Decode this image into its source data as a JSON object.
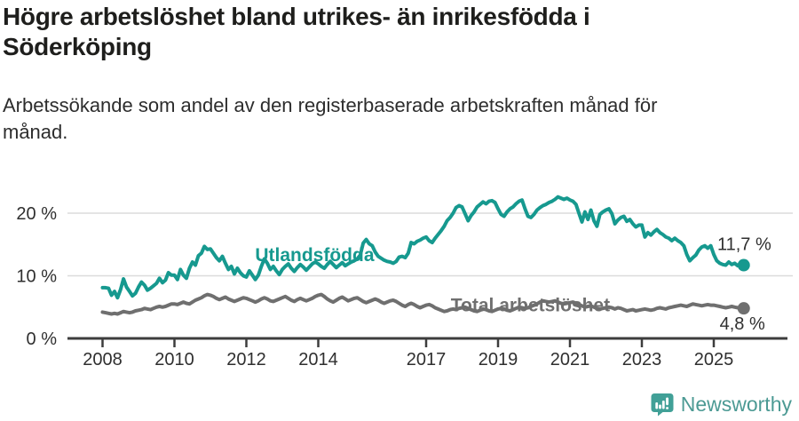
{
  "chart_data": {
    "type": "line",
    "title": "Högre arbetslöshet bland utrikes- än inrikesfödda i\nSöderköping",
    "subtitle": "Arbetssökande som andel av den registerbaserade arbetskraften månad för\nmånad.",
    "x_start_year": 2008,
    "x_step_months": 1,
    "x_ticks": [
      "2008",
      "2010",
      "2012",
      "2014",
      "2017",
      "2019",
      "2021",
      "2023",
      "2025"
    ],
    "y_ticks": [
      {
        "value": 0,
        "label": "0 %"
      },
      {
        "value": 10,
        "label": "10 %"
      },
      {
        "value": 20,
        "label": "20 %"
      }
    ],
    "ylim": [
      0,
      24
    ],
    "grid": "horizontal-light",
    "legend_position": "inline-labels",
    "series": [
      {
        "name": "Utlandsfödda",
        "color": "#16998f",
        "end_label": "11,7 %",
        "last_value": 11.7,
        "label_anchor": {
          "year": 2013.9,
          "value": 13.3
        },
        "values": [
          8.1,
          8.1,
          8.0,
          6.9,
          7.5,
          6.5,
          7.8,
          9.5,
          8.2,
          7.5,
          6.8,
          7.2,
          8.2,
          9.0,
          8.5,
          7.7,
          8.0,
          8.4,
          8.8,
          9.6,
          8.9,
          9.3,
          10.5,
          10.1,
          10.1,
          9.4,
          11.0,
          10.1,
          9.6,
          11.2,
          12.2,
          11.7,
          13.2,
          13.6,
          14.7,
          14.2,
          14.3,
          13.6,
          12.9,
          12.4,
          13.1,
          12.0,
          11.0,
          11.5,
          10.3,
          11.2,
          10.5,
          10.0,
          9.8,
          10.8,
          10.1,
          9.4,
          10.1,
          11.5,
          12.7,
          12.0,
          11.0,
          11.5,
          10.8,
          10.2,
          11.0,
          11.5,
          11.9,
          11.2,
          10.7,
          11.3,
          11.8,
          11.4,
          10.9,
          11.4,
          11.9,
          12.2,
          11.9,
          11.5,
          11.2,
          11.8,
          12.3,
          11.8,
          11.3,
          11.7,
          12.1,
          11.6,
          11.9,
          12.2,
          12.4,
          12.7,
          13.3,
          15.2,
          15.8,
          15.1,
          14.8,
          13.8,
          13.1,
          12.8,
          12.5,
          12.3,
          12.2,
          12.0,
          12.3,
          13.0,
          13.1,
          12.9,
          13.6,
          15.3,
          15.1,
          15.5,
          15.7,
          16.0,
          16.2,
          15.6,
          15.3,
          16.0,
          16.6,
          17.2,
          17.9,
          18.8,
          19.3,
          20.0,
          20.9,
          21.2,
          21.0,
          19.9,
          18.8,
          19.6,
          20.2,
          21.0,
          21.4,
          21.8,
          21.5,
          21.9,
          22.0,
          21.7,
          20.7,
          19.8,
          19.5,
          20.2,
          20.7,
          21.0,
          21.5,
          21.9,
          22.1,
          20.7,
          19.5,
          19.3,
          19.8,
          20.5,
          20.9,
          21.2,
          21.4,
          21.7,
          21.9,
          22.2,
          22.6,
          22.4,
          22.2,
          22.4,
          22.1,
          21.9,
          21.4,
          20.0,
          18.6,
          20.2,
          19.0,
          20.5,
          18.8,
          17.9,
          19.8,
          20.2,
          20.5,
          20.7,
          19.9,
          18.3,
          18.9,
          19.3,
          19.5,
          18.7,
          19.0,
          18.3,
          17.8,
          18.1,
          18.1,
          16.2,
          16.9,
          16.5,
          17.0,
          17.4,
          16.9,
          16.6,
          16.2,
          16.0,
          15.6,
          16.0,
          15.6,
          15.3,
          14.8,
          13.4,
          12.4,
          12.9,
          13.3,
          14.1,
          14.6,
          14.8,
          14.4,
          14.8,
          13.4,
          12.4,
          12.0,
          11.8,
          11.7,
          12.2,
          11.8,
          12.0,
          11.6,
          11.8,
          11.7
        ]
      },
      {
        "name": "Total arbetslöshet",
        "color": "#6f6f6f",
        "end_label": "4,8 %",
        "last_value": 4.8,
        "label_anchor": {
          "year": 2019.9,
          "value": 5.35
        },
        "values": [
          4.2,
          4.1,
          4.0,
          3.9,
          4.0,
          3.9,
          4.1,
          4.3,
          4.2,
          4.1,
          4.2,
          4.4,
          4.5,
          4.6,
          4.8,
          4.7,
          4.6,
          4.8,
          5.0,
          5.1,
          5.0,
          5.1,
          5.3,
          5.5,
          5.5,
          5.4,
          5.6,
          5.8,
          5.6,
          5.5,
          5.8,
          6.1,
          6.3,
          6.5,
          6.8,
          7.0,
          6.9,
          6.7,
          6.4,
          6.2,
          6.4,
          6.6,
          6.3,
          6.1,
          5.9,
          6.1,
          6.3,
          6.5,
          6.4,
          6.2,
          6.0,
          5.8,
          6.0,
          6.3,
          6.5,
          6.3,
          6.0,
          5.9,
          6.1,
          6.3,
          6.5,
          6.7,
          6.4,
          6.1,
          5.9,
          6.2,
          6.4,
          6.2,
          6.0,
          6.2,
          6.4,
          6.7,
          6.9,
          7.0,
          6.7,
          6.3,
          6.0,
          5.8,
          6.1,
          6.4,
          6.6,
          6.3,
          6.0,
          6.2,
          6.4,
          6.5,
          6.2,
          5.9,
          5.7,
          5.9,
          6.1,
          6.3,
          6.1,
          5.8,
          5.6,
          5.8,
          6.0,
          6.1,
          5.9,
          5.6,
          5.3,
          5.1,
          5.4,
          5.6,
          5.4,
          5.1,
          4.9,
          5.1,
          5.3,
          5.4,
          5.2,
          4.9,
          4.7,
          4.5,
          4.3,
          4.4,
          4.6,
          4.7,
          4.6,
          4.8,
          4.9,
          5.0,
          4.8,
          4.6,
          4.4,
          4.3,
          4.5,
          4.7,
          4.6,
          4.4,
          4.3,
          4.5,
          4.7,
          4.8,
          4.7,
          4.5,
          4.4,
          4.6,
          4.8,
          5.0,
          4.9,
          4.8,
          4.9,
          5.1,
          5.3,
          5.5,
          5.8,
          6.0,
          5.9,
          5.8,
          5.9,
          6.0,
          5.8,
          5.6,
          5.5,
          5.6,
          5.7,
          5.8,
          5.6,
          5.4,
          5.2,
          5.0,
          5.1,
          5.2,
          5.0,
          4.8,
          4.7,
          4.8,
          4.9,
          5.0,
          4.9,
          4.7,
          4.9,
          4.8,
          4.6,
          4.4,
          4.5,
          4.6,
          4.4,
          4.5,
          4.6,
          4.7,
          4.6,
          4.5,
          4.6,
          4.8,
          4.9,
          4.8,
          4.7,
          4.9,
          5.0,
          5.1,
          5.2,
          5.3,
          5.2,
          5.1,
          5.3,
          5.5,
          5.4,
          5.3,
          5.2,
          5.3,
          5.4,
          5.3,
          5.3,
          5.2,
          5.1,
          5.0,
          4.9,
          5.0,
          5.1,
          5.0,
          4.9,
          4.9,
          4.8
        ]
      }
    ]
  },
  "footer": {
    "brand": "Newsworthy"
  },
  "colors": {
    "accent_teal": "#16998f",
    "line_gray": "#6f6f6f",
    "brand_teal": "#4c9a94",
    "grid": "#dbdbdb",
    "axis": "#3d3d3d"
  }
}
